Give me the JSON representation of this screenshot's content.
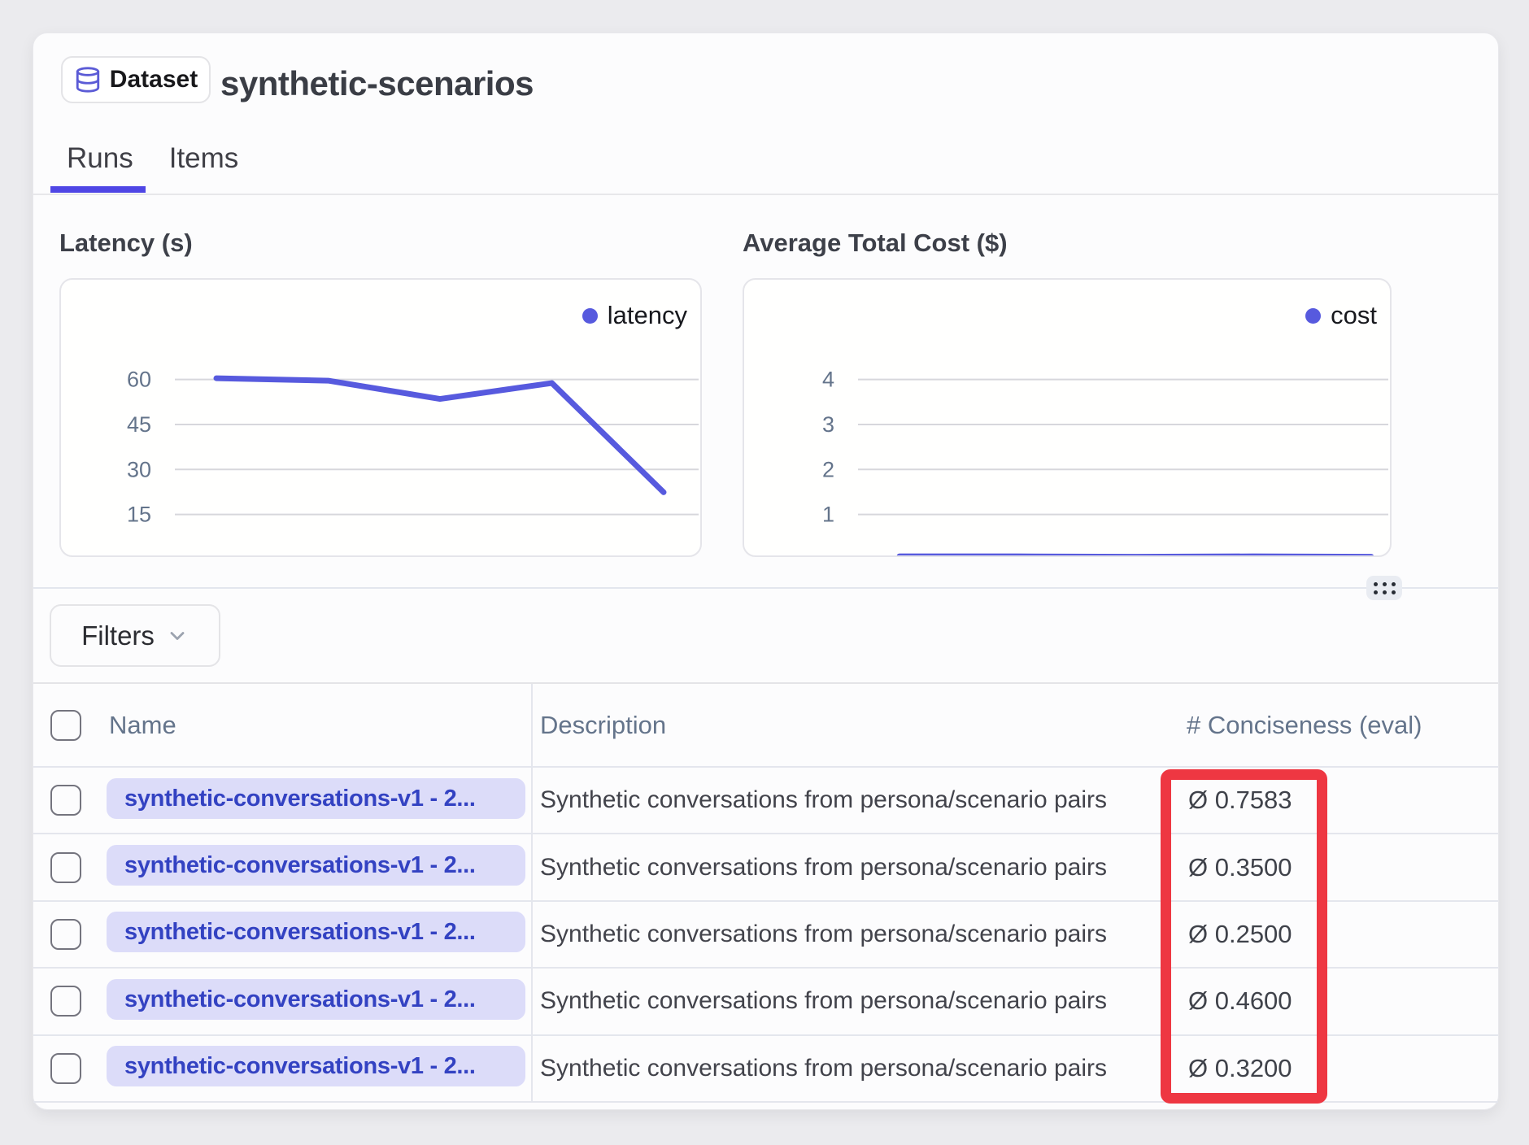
{
  "header": {
    "badge": "Dataset",
    "title": "synthetic-scenarios"
  },
  "tabs": [
    {
      "label": "Runs",
      "active": true
    },
    {
      "label": "Items",
      "active": false
    }
  ],
  "chart_data": [
    {
      "type": "line",
      "title": "Latency (s)",
      "series": [
        {
          "name": "latency",
          "values": [
            60.4,
            59.6,
            53.5,
            58.8,
            22.4
          ]
        }
      ],
      "ylim": [
        0,
        60
      ],
      "yticks": [
        15,
        30,
        45,
        60
      ],
      "legend_position": "top-right",
      "grid": "horizontal",
      "line_color": "#575ade"
    },
    {
      "type": "line",
      "title": "Average Total Cost ($)",
      "series": [
        {
          "name": "cost",
          "values": [
            0.07,
            0.07,
            0.06,
            0.07,
            0.06
          ]
        }
      ],
      "ylim": [
        0,
        4
      ],
      "yticks": [
        1,
        2,
        3,
        4
      ],
      "legend_position": "top-right",
      "grid": "horizontal",
      "line_color": "#575ade"
    }
  ],
  "filters": {
    "label": "Filters"
  },
  "table": {
    "columns": {
      "name": "Name",
      "description": "Description",
      "conciseness": "# Conciseness (eval)"
    },
    "value_prefix": "Ø",
    "rows": [
      {
        "name": "synthetic-conversations-v1 - 2...",
        "description": "Synthetic conversations from persona/scenario pairs",
        "conciseness": 0.7583
      },
      {
        "name": "synthetic-conversations-v1 - 2...",
        "description": "Synthetic conversations from persona/scenario pairs",
        "conciseness": 0.35
      },
      {
        "name": "synthetic-conversations-v1 - 2...",
        "description": "Synthetic conversations from persona/scenario pairs",
        "conciseness": 0.25
      },
      {
        "name": "synthetic-conversations-v1 - 2...",
        "description": "Synthetic conversations from persona/scenario pairs",
        "conciseness": 0.46
      },
      {
        "name": "synthetic-conversations-v1 - 2...",
        "description": "Synthetic conversations from persona/scenario pairs",
        "conciseness": 0.32
      }
    ]
  },
  "annotation": {
    "color": "#ee3742"
  },
  "colors": {
    "accent_indigo": "#575ade",
    "tab_underline": "#4f46e5"
  }
}
